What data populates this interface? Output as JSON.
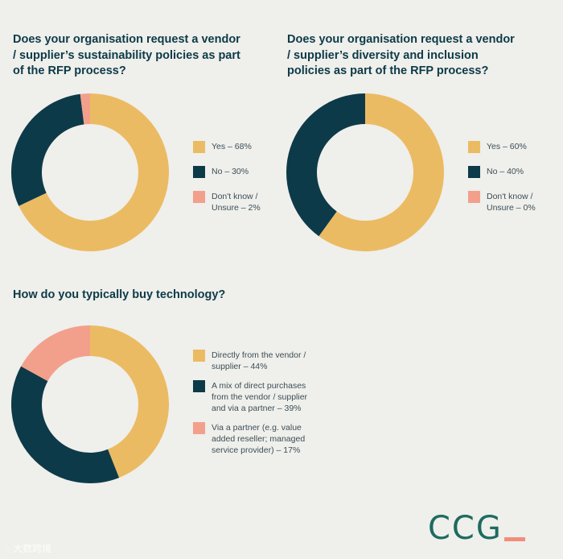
{
  "colors": {
    "yes": "#ebbb63",
    "no": "#0d3a48",
    "unsure": "#f2a08c",
    "background": "#efefeb",
    "logo": "#1d6b5f",
    "logo_accent": "#ef8f7b"
  },
  "chart_data": [
    {
      "type": "pie",
      "title": "Does your organisation request a vendor\n/ supplier’s sustainability policies as part\nof the RFP process?",
      "categories": [
        "Yes",
        "No",
        "Don't know / Unsure"
      ],
      "values": [
        68,
        30,
        2
      ],
      "legend": [
        "Yes – 68%",
        "No – 30%",
        "Don't know /\nUnsure – 2%"
      ],
      "legend_position": "right"
    },
    {
      "type": "pie",
      "title": "Does your organisation request a vendor\n/ supplier’s diversity and inclusion\npolicies as part of the RFP process?",
      "categories": [
        "Yes",
        "No",
        "Don't know / Unsure"
      ],
      "values": [
        60,
        40,
        0
      ],
      "legend": [
        "Yes – 60%",
        "No – 40%",
        "Don't know /\nUnsure – 0%"
      ],
      "legend_position": "right"
    },
    {
      "type": "pie",
      "title": "How do you typically buy technology?",
      "categories": [
        "Directly from the vendor / supplier",
        "A mix of direct purchases from the vendor / supplier and via a partner",
        "Via a partner (e.g. value added reseller; managed service provider)"
      ],
      "values": [
        44,
        39,
        17
      ],
      "legend": [
        "Directly from the vendor /\nsupplier – 44%",
        "A mix of direct purchases\nfrom the vendor / supplier\nand via a partner – 39%",
        "Via a partner (e.g. value\nadded reseller; managed\nservice provider) – 17%"
      ],
      "legend_position": "right"
    }
  ],
  "logo": {
    "text": "CCG"
  },
  "watermark": {
    "text": "大数跨境"
  }
}
